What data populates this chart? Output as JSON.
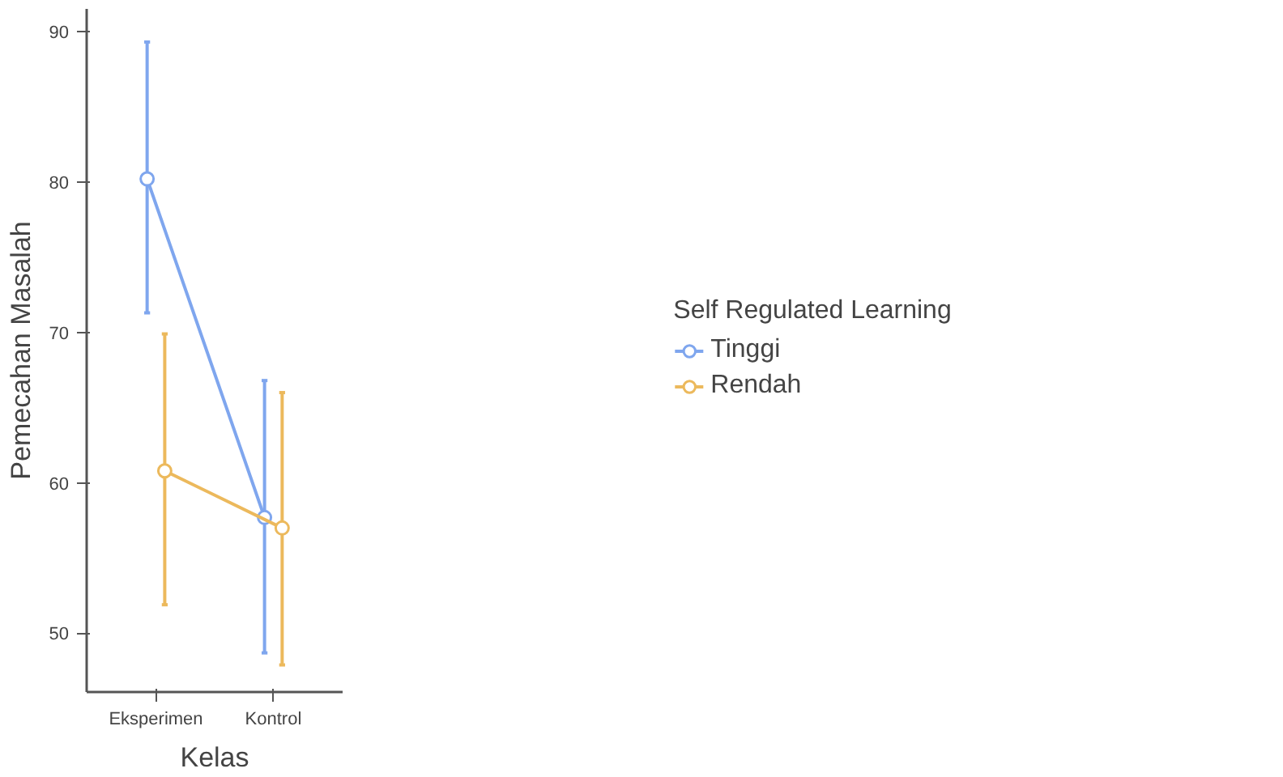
{
  "chart_data": {
    "type": "line",
    "xlabel": "Kelas",
    "ylabel": "Pemecahan Masalah",
    "legend_title": "Self Regulated Learning",
    "categories": [
      "Eksperimen",
      "Kontrol"
    ],
    "series": [
      {
        "name": "Tinggi",
        "color": "#7fa6ee",
        "values": [
          80.2,
          57.7
        ],
        "errors": [
          [
            71.3,
            89.3
          ],
          [
            48.7,
            66.8
          ]
        ]
      },
      {
        "name": "Rendah",
        "color": "#ecb95c",
        "values": [
          60.8,
          57.0
        ],
        "errors": [
          [
            51.9,
            69.9
          ],
          [
            47.9,
            66.0
          ]
        ]
      }
    ],
    "ylim": [
      46.1,
      91.5
    ],
    "yticks": [
      50,
      60,
      70,
      80,
      90
    ],
    "grid": false,
    "legend": "right",
    "marker": "circle",
    "line_style": "solid"
  }
}
